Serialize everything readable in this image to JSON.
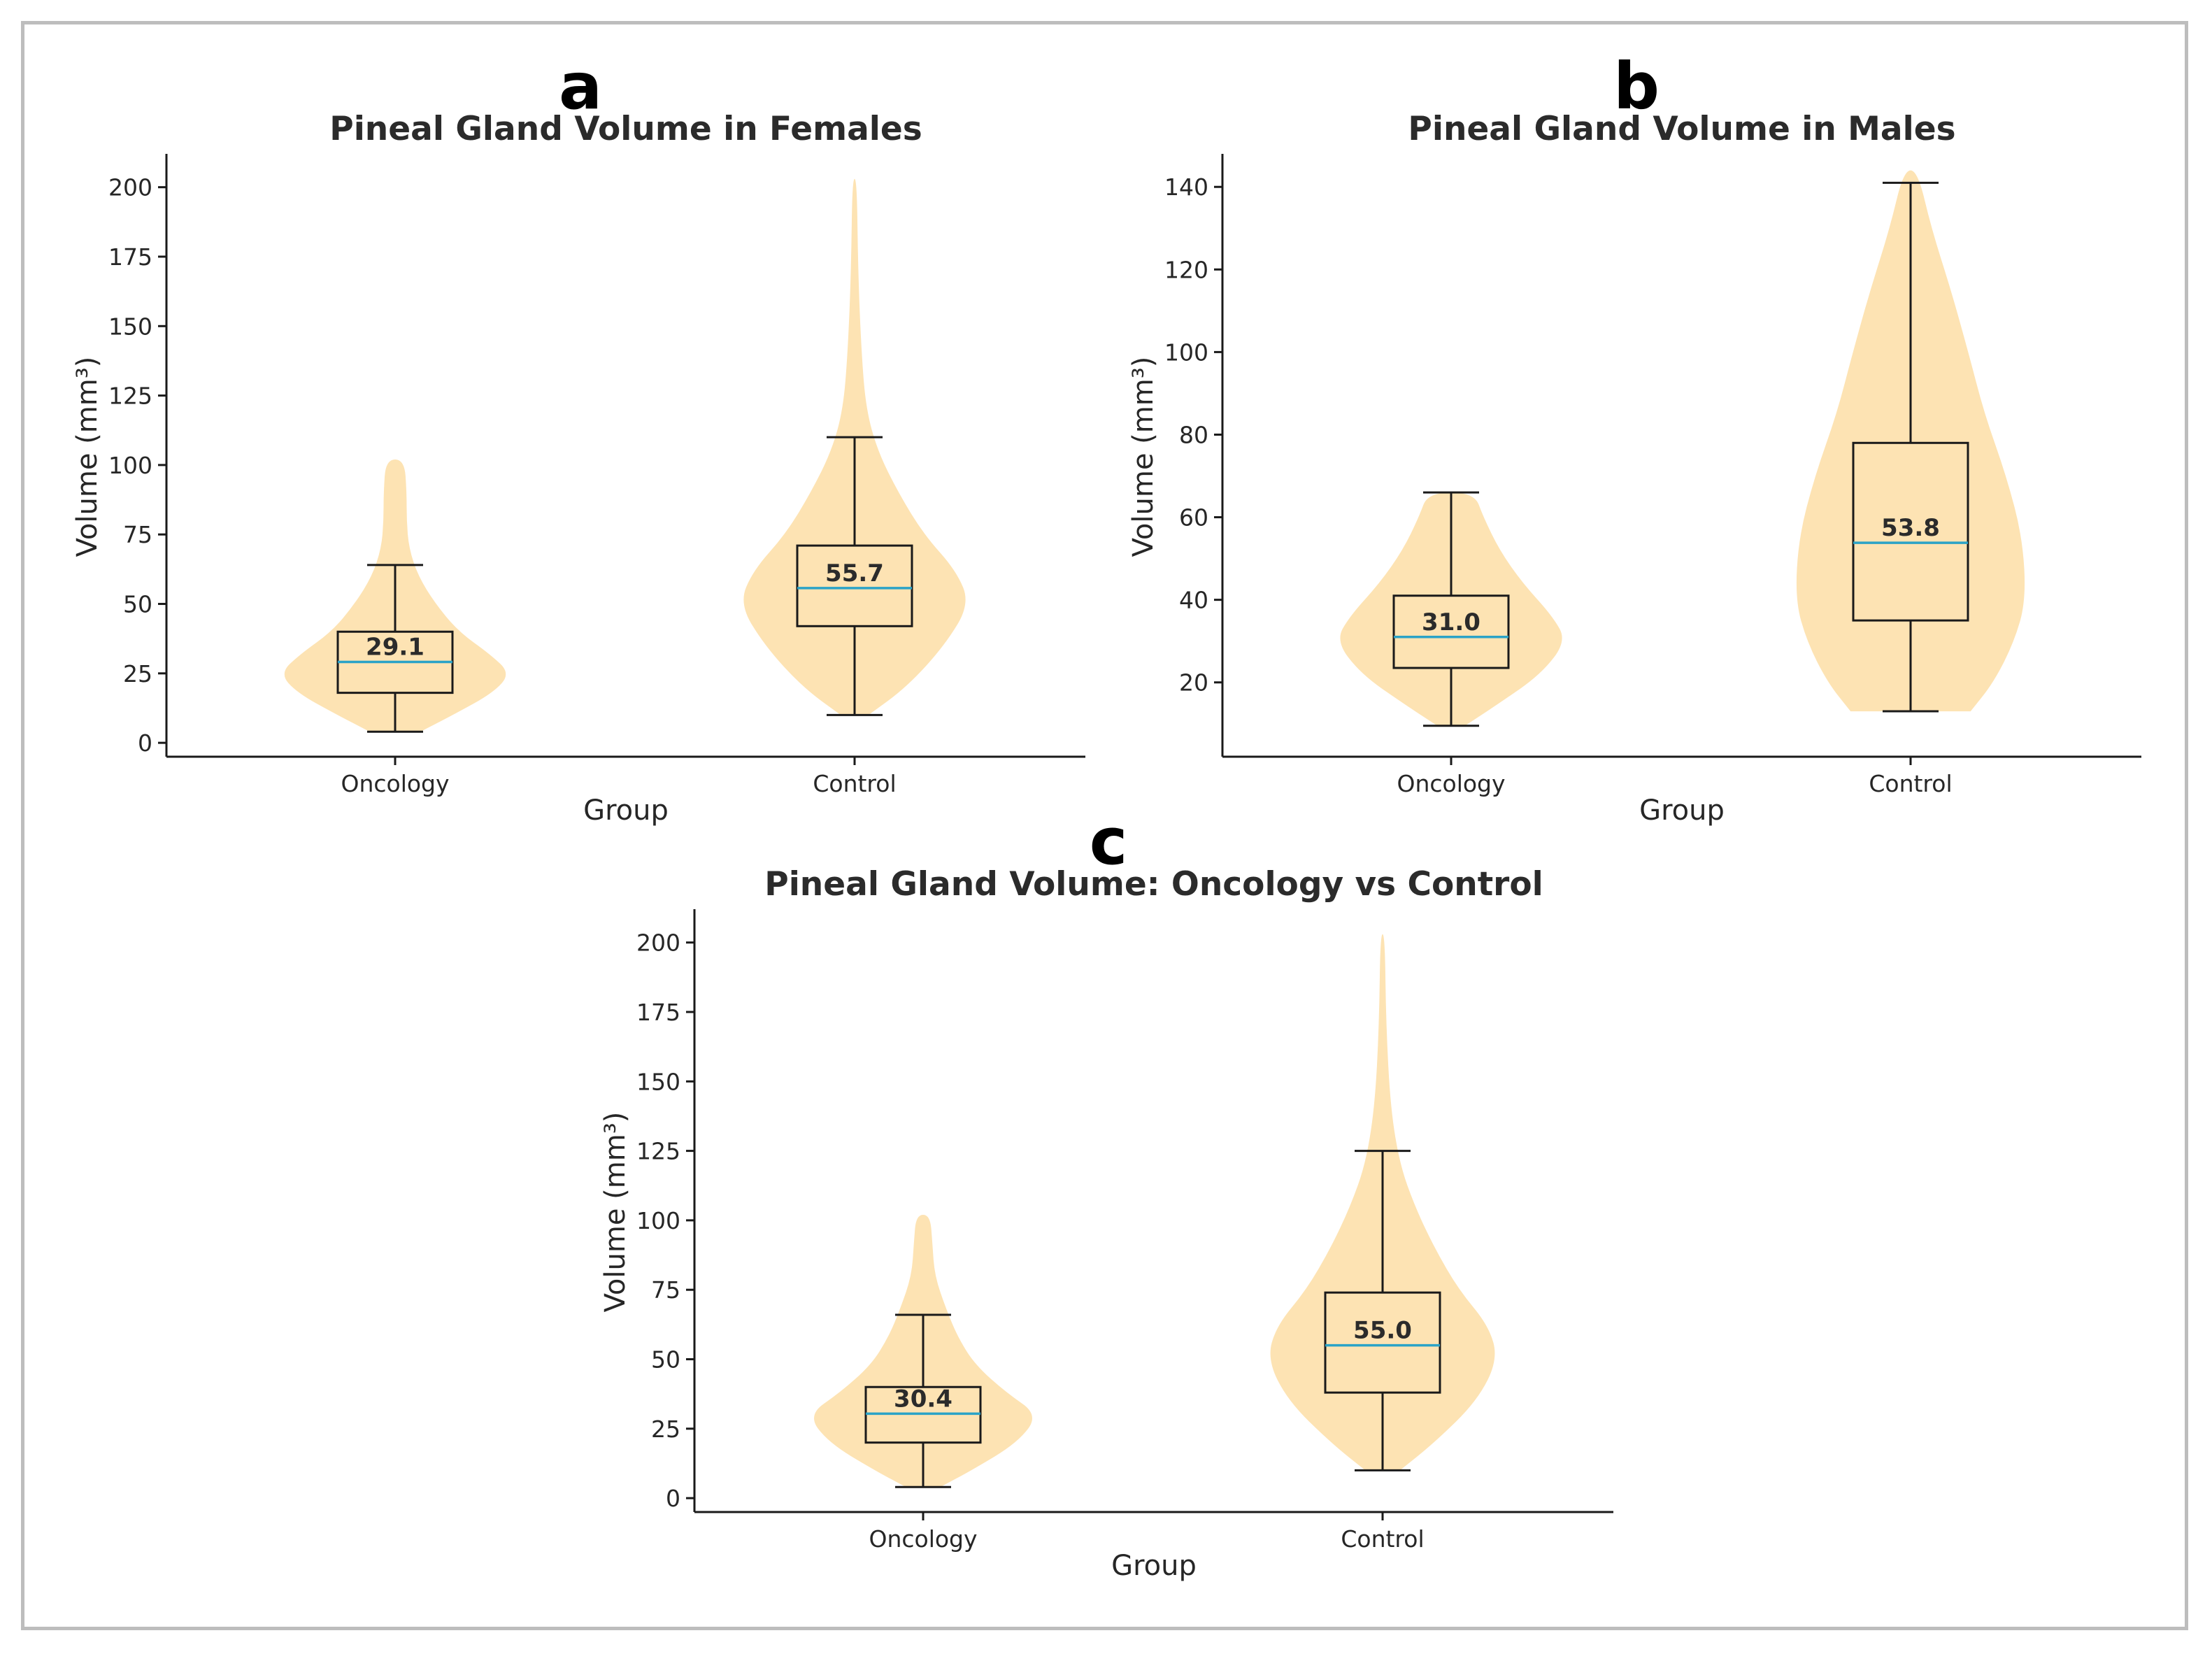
{
  "chart_data": [
    {
      "panel": "a",
      "type": "violin",
      "title": "Pineal Gland Volume in Females",
      "xlabel": "Group",
      "ylabel": "Volume (mm³)",
      "ylim": [
        -5,
        212
      ],
      "yticks": [
        0,
        25,
        50,
        75,
        100,
        125,
        150,
        175,
        200
      ],
      "categories": [
        "Oncology",
        "Control"
      ],
      "groups": [
        {
          "name": "Oncology",
          "min": 4,
          "q1": 18,
          "median": 29.1,
          "q3": 40,
          "max": 102,
          "whisker_high": 64,
          "median_label": "29.1",
          "density": [
            [
              4,
              0.22
            ],
            [
              10,
              0.5
            ],
            [
              18,
              0.85
            ],
            [
              25,
              1.0
            ],
            [
              32,
              0.82
            ],
            [
              40,
              0.55
            ],
            [
              50,
              0.35
            ],
            [
              60,
              0.2
            ],
            [
              70,
              0.12
            ],
            [
              80,
              0.1
            ],
            [
              90,
              0.1
            ],
            [
              102,
              0.08
            ]
          ]
        },
        {
          "name": "Control",
          "min": 10,
          "q1": 42,
          "median": 55.7,
          "q3": 71,
          "max": 203,
          "whisker_high": 110,
          "median_label": "55.7",
          "density": [
            [
              10,
              0.12
            ],
            [
              20,
              0.45
            ],
            [
              35,
              0.78
            ],
            [
              50,
              1.0
            ],
            [
              62,
              0.88
            ],
            [
              75,
              0.6
            ],
            [
              90,
              0.38
            ],
            [
              105,
              0.2
            ],
            [
              120,
              0.1
            ],
            [
              140,
              0.06
            ],
            [
              170,
              0.03
            ],
            [
              203,
              0.02
            ]
          ]
        }
      ]
    },
    {
      "panel": "b",
      "type": "violin",
      "title": "Pineal Gland Volume in Males",
      "xlabel": "Group",
      "ylabel": "Volume (mm³)",
      "ylim": [
        2,
        148
      ],
      "yticks": [
        20,
        40,
        60,
        80,
        100,
        120,
        140
      ],
      "categories": [
        "Oncology",
        "Control"
      ],
      "groups": [
        {
          "name": "Oncology",
          "min": 9.5,
          "q1": 23.5,
          "median": 31.0,
          "q3": 41,
          "max": 66,
          "whisker_high": 66,
          "median_label": "31.0",
          "density": [
            [
              9.5,
              0.12
            ],
            [
              15,
              0.42
            ],
            [
              22,
              0.78
            ],
            [
              30,
              1.0
            ],
            [
              36,
              0.88
            ],
            [
              44,
              0.62
            ],
            [
              52,
              0.42
            ],
            [
              60,
              0.28
            ],
            [
              66,
              0.2
            ]
          ]
        },
        {
          "name": "Control",
          "min": 13,
          "q1": 35,
          "median": 53.8,
          "q3": 78,
          "max": 144,
          "whisker_high": 141,
          "median_label": "53.8",
          "density": [
            [
              13,
              0.52
            ],
            [
              20,
              0.72
            ],
            [
              30,
              0.9
            ],
            [
              40,
              1.0
            ],
            [
              55,
              0.97
            ],
            [
              70,
              0.83
            ],
            [
              85,
              0.64
            ],
            [
              100,
              0.5
            ],
            [
              115,
              0.35
            ],
            [
              130,
              0.18
            ],
            [
              144,
              0.06
            ]
          ]
        }
      ]
    },
    {
      "panel": "c",
      "type": "violin",
      "title": "Pineal Gland Volume: Oncology vs Control",
      "xlabel": "Group",
      "ylabel": "Volume (mm³)",
      "ylim": [
        -5,
        212
      ],
      "yticks": [
        0,
        25,
        50,
        75,
        100,
        125,
        150,
        175,
        200
      ],
      "categories": [
        "Oncology",
        "Control"
      ],
      "groups": [
        {
          "name": "Oncology",
          "min": 4,
          "q1": 20,
          "median": 30.4,
          "q3": 40,
          "max": 102,
          "whisker_high": 66,
          "median_label": "30.4",
          "density": [
            [
              4,
              0.15
            ],
            [
              10,
              0.42
            ],
            [
              20,
              0.82
            ],
            [
              30,
              1.0
            ],
            [
              38,
              0.72
            ],
            [
              48,
              0.45
            ],
            [
              58,
              0.3
            ],
            [
              68,
              0.2
            ],
            [
              80,
              0.1
            ],
            [
              92,
              0.08
            ],
            [
              102,
              0.06
            ]
          ]
        },
        {
          "name": "Control",
          "min": 10,
          "q1": 38,
          "median": 55.0,
          "q3": 74,
          "max": 203,
          "whisker_high": 125,
          "median_label": "55.0",
          "density": [
            [
              10,
              0.15
            ],
            [
              20,
              0.45
            ],
            [
              35,
              0.82
            ],
            [
              50,
              1.0
            ],
            [
              62,
              0.92
            ],
            [
              75,
              0.66
            ],
            [
              90,
              0.45
            ],
            [
              105,
              0.28
            ],
            [
              120,
              0.15
            ],
            [
              140,
              0.07
            ],
            [
              170,
              0.03
            ],
            [
              203,
              0.02
            ]
          ]
        }
      ]
    }
  ],
  "colors": {
    "violin_fill": "#fde3b3",
    "median_line": "#2ba3c7"
  }
}
